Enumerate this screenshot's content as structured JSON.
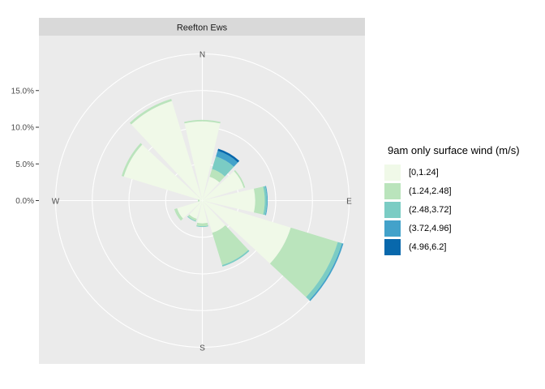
{
  "chart_data": {
    "type": "wind-rose",
    "facet": "Reefton Ews",
    "direction_labels": [
      "N",
      "E",
      "S",
      "W"
    ],
    "radial_ticks": [
      "0.0%",
      "5.0%",
      "10.0%",
      "15.0%"
    ],
    "radial_tick_values": [
      0,
      5,
      10,
      15
    ],
    "rmax": 20,
    "legend_title": "9am only surface wind (m/s)",
    "bins": [
      {
        "label": "[0,1.24]",
        "color": "#f0f9e8"
      },
      {
        "label": "(1.24,2.48]",
        "color": "#bae4bc"
      },
      {
        "label": "(2.48,3.72]",
        "color": "#7bccc4"
      },
      {
        "label": "(3.72,4.96]",
        "color": "#43a2ca"
      },
      {
        "label": "(4.96,6.2]",
        "color": "#0868ac"
      }
    ],
    "sectors": [
      {
        "dir": 0,
        "values": [
          10.8,
          0.2,
          0.0,
          0.0,
          0.0
        ]
      },
      {
        "dir": 30,
        "values": [
          3.4,
          1.1,
          1.8,
          0.8,
          0.3
        ]
      },
      {
        "dir": 60,
        "values": [
          5.9,
          0.2,
          0.0,
          0.0,
          0.0
        ]
      },
      {
        "dir": 90,
        "values": [
          7.2,
          1.3,
          0.3,
          0.1,
          0.0
        ]
      },
      {
        "dir": 120,
        "values": [
          12.6,
          6.7,
          0.6,
          0.2,
          0.0
        ]
      },
      {
        "dir": 150,
        "values": [
          4.6,
          4.6,
          0.2,
          0.0,
          0.0
        ]
      },
      {
        "dir": 180,
        "values": [
          3.1,
          0.4,
          0.1,
          0.0,
          0.0
        ]
      },
      {
        "dir": 210,
        "values": [
          2.6,
          0.3,
          0.1,
          0.0,
          0.0
        ]
      },
      {
        "dir": 240,
        "values": [
          3.6,
          0.4,
          0.0,
          0.0,
          0.0
        ]
      },
      {
        "dir": 270,
        "values": [
          0.4,
          0.2,
          0.0,
          0.0,
          0.0
        ]
      },
      {
        "dir": 300,
        "values": [
          11.2,
          0.3,
          0.0,
          0.0,
          0.0
        ]
      },
      {
        "dir": 330,
        "values": [
          14.2,
          0.3,
          0.0,
          0.0,
          0.0
        ]
      }
    ]
  }
}
